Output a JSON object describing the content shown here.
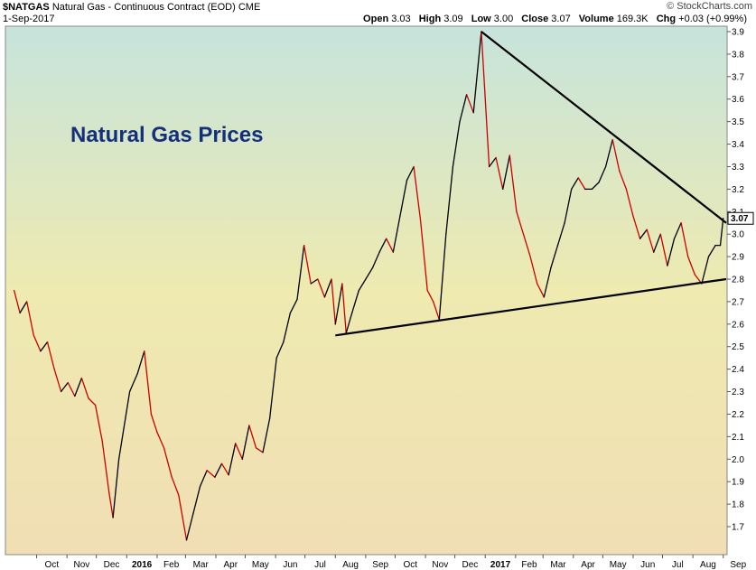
{
  "header": {
    "symbol": "$NATGAS",
    "name": "Natural Gas - Continuous Contract (EOD)",
    "exchange": "CME",
    "date": "1-Sep-2017",
    "source": "© StockCharts.com",
    "quote": [
      {
        "label": "Open",
        "value": "3.03"
      },
      {
        "label": "High",
        "value": "3.09"
      },
      {
        "label": "Low",
        "value": "3.00"
      },
      {
        "label": "Close",
        "value": "3.07"
      },
      {
        "label": "Volume",
        "value": "169.3K"
      },
      {
        "label": "Chg",
        "value": "+0.03 (+0.99%)"
      }
    ]
  },
  "colors": {
    "up": "#000000",
    "down": "#cc0000",
    "trendline": "#000000",
    "annotation": "#14307a",
    "bg_top": "#c6e4dc",
    "bg_mid": "#eeeab0",
    "bg_bottom": "#f1deb4"
  },
  "chart_data": {
    "type": "line",
    "title": "Natural Gas Prices",
    "xlabel": "",
    "ylabel": "",
    "ylim": [
      1.6,
      3.9
    ],
    "y_ticks": [
      "1.7",
      "1.8",
      "1.9",
      "2.0",
      "2.1",
      "2.2",
      "2.3",
      "2.4",
      "2.5",
      "2.6",
      "2.7",
      "2.8",
      "2.9",
      "3.0",
      "3.1",
      "3.2",
      "3.3",
      "3.4",
      "3.5",
      "3.6",
      "3.7",
      "3.8",
      "3.9"
    ],
    "x_ticks": [
      {
        "label": "Oct",
        "date": "2015-10-01"
      },
      {
        "label": "Nov",
        "date": "2015-11-01"
      },
      {
        "label": "Dec",
        "date": "2015-12-01"
      },
      {
        "label": "2016",
        "date": "2016-01-01",
        "bold": true
      },
      {
        "label": "Feb",
        "date": "2016-02-01"
      },
      {
        "label": "Mar",
        "date": "2016-03-01"
      },
      {
        "label": "Apr",
        "date": "2016-04-01"
      },
      {
        "label": "May",
        "date": "2016-05-01"
      },
      {
        "label": "Jun",
        "date": "2016-06-01"
      },
      {
        "label": "Jul",
        "date": "2016-07-01"
      },
      {
        "label": "Aug",
        "date": "2016-08-01"
      },
      {
        "label": "Sep",
        "date": "2016-09-01"
      },
      {
        "label": "Oct",
        "date": "2016-10-01"
      },
      {
        "label": "Nov",
        "date": "2016-11-01"
      },
      {
        "label": "Dec",
        "date": "2016-12-01"
      },
      {
        "label": "2017",
        "date": "2017-01-01",
        "bold": true
      },
      {
        "label": "Feb",
        "date": "2017-02-01"
      },
      {
        "label": "Mar",
        "date": "2017-03-01"
      },
      {
        "label": "Apr",
        "date": "2017-04-01"
      },
      {
        "label": "May",
        "date": "2017-05-01"
      },
      {
        "label": "Jun",
        "date": "2017-06-01"
      },
      {
        "label": "Jul",
        "date": "2017-07-01"
      },
      {
        "label": "Aug",
        "date": "2017-08-01"
      },
      {
        "label": "Sep",
        "date": "2017-09-01"
      }
    ],
    "last_value_label": "3.07",
    "grid": false,
    "series": [
      {
        "points": [
          [
            "2015-09-08",
            2.75
          ],
          [
            "2015-09-14",
            2.65
          ],
          [
            "2015-09-21",
            2.7
          ],
          [
            "2015-09-28",
            2.55
          ],
          [
            "2015-10-05",
            2.48
          ],
          [
            "2015-10-12",
            2.52
          ],
          [
            "2015-10-19",
            2.4
          ],
          [
            "2015-10-26",
            2.3
          ],
          [
            "2015-11-02",
            2.34
          ],
          [
            "2015-11-09",
            2.28
          ],
          [
            "2015-11-16",
            2.36
          ],
          [
            "2015-11-23",
            2.27
          ],
          [
            "2015-11-30",
            2.24
          ],
          [
            "2015-12-07",
            2.08
          ],
          [
            "2015-12-14",
            1.85
          ],
          [
            "2015-12-18",
            1.74
          ],
          [
            "2015-12-24",
            2.0
          ],
          [
            "2016-01-04",
            2.3
          ],
          [
            "2016-01-12",
            2.38
          ],
          [
            "2016-01-19",
            2.48
          ],
          [
            "2016-01-26",
            2.2
          ],
          [
            "2016-02-01",
            2.12
          ],
          [
            "2016-02-08",
            2.05
          ],
          [
            "2016-02-16",
            1.92
          ],
          [
            "2016-02-23",
            1.84
          ],
          [
            "2016-03-02",
            1.64
          ],
          [
            "2016-03-09",
            1.76
          ],
          [
            "2016-03-16",
            1.88
          ],
          [
            "2016-03-23",
            1.95
          ],
          [
            "2016-03-31",
            1.92
          ],
          [
            "2016-04-07",
            1.98
          ],
          [
            "2016-04-14",
            1.93
          ],
          [
            "2016-04-21",
            2.07
          ],
          [
            "2016-04-28",
            2.0
          ],
          [
            "2016-05-05",
            2.15
          ],
          [
            "2016-05-12",
            2.05
          ],
          [
            "2016-05-19",
            2.03
          ],
          [
            "2016-05-26",
            2.18
          ],
          [
            "2016-06-02",
            2.45
          ],
          [
            "2016-06-09",
            2.52
          ],
          [
            "2016-06-16",
            2.65
          ],
          [
            "2016-06-23",
            2.71
          ],
          [
            "2016-06-30",
            2.95
          ],
          [
            "2016-07-07",
            2.78
          ],
          [
            "2016-07-14",
            2.8
          ],
          [
            "2016-07-21",
            2.72
          ],
          [
            "2016-07-28",
            2.8
          ],
          [
            "2016-08-01",
            2.6
          ],
          [
            "2016-08-08",
            2.78
          ],
          [
            "2016-08-12",
            2.56
          ],
          [
            "2016-08-18",
            2.65
          ],
          [
            "2016-08-25",
            2.75
          ],
          [
            "2016-09-01",
            2.8
          ],
          [
            "2016-09-08",
            2.85
          ],
          [
            "2016-09-15",
            2.92
          ],
          [
            "2016-09-22",
            2.98
          ],
          [
            "2016-09-29",
            2.92
          ],
          [
            "2016-10-06",
            3.08
          ],
          [
            "2016-10-13",
            3.24
          ],
          [
            "2016-10-20",
            3.3
          ],
          [
            "2016-10-27",
            3.06
          ],
          [
            "2016-11-03",
            2.75
          ],
          [
            "2016-11-09",
            2.7
          ],
          [
            "2016-11-15",
            2.62
          ],
          [
            "2016-11-22",
            3.0
          ],
          [
            "2016-11-29",
            3.3
          ],
          [
            "2016-12-06",
            3.5
          ],
          [
            "2016-12-13",
            3.62
          ],
          [
            "2016-12-20",
            3.54
          ],
          [
            "2016-12-28",
            3.9
          ],
          [
            "2017-01-05",
            3.3
          ],
          [
            "2017-01-12",
            3.34
          ],
          [
            "2017-01-19",
            3.2
          ],
          [
            "2017-01-26",
            3.35
          ],
          [
            "2017-02-02",
            3.1
          ],
          [
            "2017-02-09",
            3.0
          ],
          [
            "2017-02-16",
            2.9
          ],
          [
            "2017-02-23",
            2.78
          ],
          [
            "2017-03-02",
            2.72
          ],
          [
            "2017-03-09",
            2.85
          ],
          [
            "2017-03-16",
            2.95
          ],
          [
            "2017-03-23",
            3.05
          ],
          [
            "2017-03-30",
            3.2
          ],
          [
            "2017-04-06",
            3.25
          ],
          [
            "2017-04-13",
            3.2
          ],
          [
            "2017-04-20",
            3.2
          ],
          [
            "2017-04-27",
            3.23
          ],
          [
            "2017-05-04",
            3.3
          ],
          [
            "2017-05-11",
            3.42
          ],
          [
            "2017-05-18",
            3.28
          ],
          [
            "2017-05-25",
            3.2
          ],
          [
            "2017-06-01",
            3.08
          ],
          [
            "2017-06-08",
            2.98
          ],
          [
            "2017-06-15",
            3.02
          ],
          [
            "2017-06-22",
            2.92
          ],
          [
            "2017-06-29",
            3.0
          ],
          [
            "2017-07-06",
            2.86
          ],
          [
            "2017-07-13",
            2.98
          ],
          [
            "2017-07-20",
            3.05
          ],
          [
            "2017-07-27",
            2.9
          ],
          [
            "2017-08-03",
            2.82
          ],
          [
            "2017-08-10",
            2.78
          ],
          [
            "2017-08-17",
            2.9
          ],
          [
            "2017-08-24",
            2.95
          ],
          [
            "2017-08-29",
            2.95
          ],
          [
            "2017-09-01",
            3.07
          ]
        ]
      }
    ],
    "annotations": [
      {
        "text": "Natural Gas Prices"
      }
    ],
    "trendlines": [
      {
        "from": [
          "2016-08-01",
          2.55
        ],
        "to": [
          "2017-09-04",
          2.8
        ]
      },
      {
        "from": [
          "2016-12-28",
          3.9
        ],
        "to": [
          "2017-09-04",
          3.05
        ]
      }
    ]
  }
}
